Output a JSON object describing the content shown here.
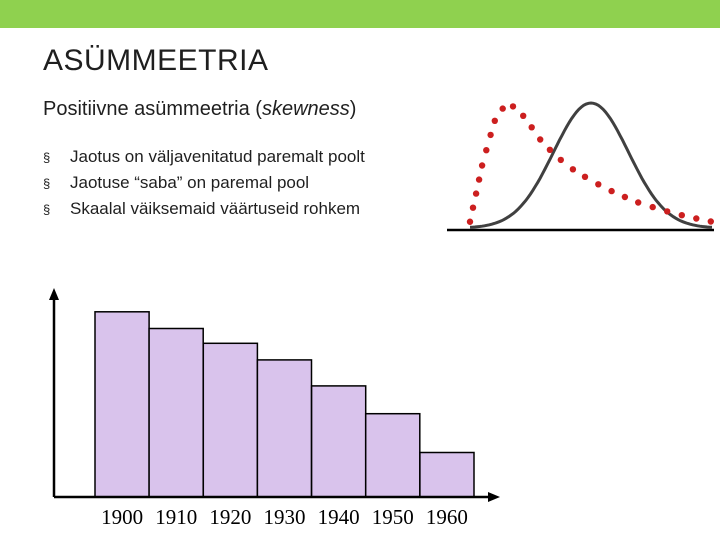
{
  "slide": {
    "title": "ASÜMMEETRIA",
    "subtitle_main": "Positiivne asümmeetria (",
    "subtitle_italic": "skewness",
    "subtitle_close": ")",
    "bullet_marker": "§",
    "bullets": [
      "Jaotus on väljavenitatud paremalt poolt",
      "Jaotuse “saba” on paremal pool",
      "Skaalal väiksemaid väärtuseid rohkem"
    ]
  },
  "colors": {
    "accent_bar": "#8fd14f",
    "histogram_fill": "#d9c3ec",
    "histogram_stroke": "#000000",
    "skewed_curve": "#cc1f1f",
    "normal_curve": "#404040"
  },
  "chart_data": [
    {
      "type": "line",
      "title": "",
      "description_shown": "normal curve vs positively skewed curve",
      "series": [
        {
          "style": "solid",
          "x": [
            0,
            1,
            2,
            3,
            4,
            5,
            6,
            7,
            8,
            9,
            10
          ],
          "values": [
            0.02,
            0.05,
            0.15,
            0.4,
            0.8,
            1.0,
            0.8,
            0.4,
            0.15,
            0.05,
            0.02
          ]
        },
        {
          "style": "dotted",
          "x": [
            0,
            0.5,
            1,
            1.5,
            2,
            2.5,
            3,
            4,
            5,
            6,
            7,
            8,
            9,
            10
          ],
          "values": [
            0.05,
            0.5,
            0.85,
            1.0,
            0.95,
            0.82,
            0.68,
            0.5,
            0.38,
            0.28,
            0.2,
            0.14,
            0.09,
            0.05
          ]
        }
      ],
      "grid": false
    },
    {
      "type": "bar",
      "categories": [
        "1900",
        "1910",
        "1920",
        "1930",
        "1940",
        "1950",
        "1960"
      ],
      "values": [
        100,
        91,
        83,
        74,
        60,
        45,
        24
      ],
      "xlabel": "",
      "ylabel": "",
      "ylim": [
        0,
        115
      ],
      "grid": false
    }
  ]
}
